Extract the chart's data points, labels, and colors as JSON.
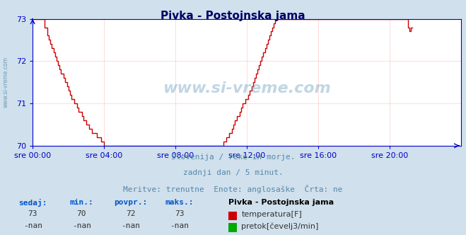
{
  "title": "Pivka - Postojnska jama",
  "bg_color": "#d0e0ec",
  "plot_bg_color": "#ffffff",
  "line_color": "#cc0000",
  "grid_color": "#ffcccc",
  "axis_color": "#0000cc",
  "text_color": "#5588aa",
  "label_color": "#0055aa",
  "footer_bold_color": "#0055cc",
  "title_color": "#000066",
  "xlim": [
    0,
    288
  ],
  "ylim": [
    70,
    73
  ],
  "yticks": [
    70,
    71,
    72,
    73
  ],
  "xtick_labels": [
    "sre 00:00",
    "sre 04:00",
    "sre 08:00",
    "sre 12:00",
    "sre 16:00",
    "sre 20:00"
  ],
  "xtick_positions": [
    0,
    48,
    96,
    144,
    192,
    240
  ],
  "subtitle_lines": [
    "Slovenija / reke in morje.",
    "zadnji dan / 5 minut.",
    "Meritve: trenutne  Enote: anglosaške  Črta: ne"
  ],
  "footer_labels": [
    "sedaj:",
    "min.:",
    "povpr.:",
    "maks.:"
  ],
  "footer_values_temp": [
    "73",
    "70",
    "72",
    "73"
  ],
  "footer_values_flow": [
    "-nan",
    "-nan",
    "-nan",
    "-nan"
  ],
  "legend_title": "Pivka - Postojnska jama",
  "legend_items": [
    {
      "label": "temperatura[F]",
      "color": "#cc0000"
    },
    {
      "label": "pretok[čevelj3/min]",
      "color": "#00aa00"
    }
  ],
  "watermark": "www.si-vreme.com",
  "temperature_data": [
    73,
    73,
    73,
    73,
    73,
    73,
    73,
    73,
    72.8,
    72.8,
    72.6,
    72.5,
    72.4,
    72.3,
    72.2,
    72.1,
    72.0,
    71.9,
    71.8,
    71.7,
    71.7,
    71.6,
    71.5,
    71.4,
    71.3,
    71.2,
    71.1,
    71.1,
    71.0,
    71.0,
    70.9,
    70.8,
    70.8,
    70.7,
    70.6,
    70.6,
    70.5,
    70.5,
    70.4,
    70.4,
    70.3,
    70.3,
    70.3,
    70.2,
    70.2,
    70.2,
    70.1,
    70.1,
    70.0,
    70.0,
    70.0,
    70.0,
    70.0,
    70.0,
    70.0,
    70.0,
    70.0,
    70.0,
    70.0,
    70.0,
    70.0,
    70.0,
    70.0,
    70.0,
    70.0,
    70.0,
    70.0,
    70.0,
    70.0,
    70.0,
    70.0,
    70.0,
    70.0,
    70.0,
    70.0,
    70.0,
    70.0,
    70.0,
    70.0,
    70.0,
    70.0,
    70.0,
    70.0,
    70.0,
    70.0,
    70.0,
    70.0,
    70.0,
    70.0,
    70.0,
    70.0,
    70.0,
    70.0,
    70.0,
    70.0,
    70.0,
    70.0,
    70.0,
    70.0,
    70.0,
    70.0,
    70.0,
    70.0,
    70.0,
    70.0,
    70.0,
    70.0,
    70.0,
    70.0,
    70.0,
    70.0,
    70.0,
    70.0,
    70.0,
    70.0,
    70.0,
    70.0,
    70.0,
    70.0,
    70.0,
    70.0,
    70.0,
    70.0,
    70.0,
    70.0,
    70.0,
    70.0,
    70.0,
    70.1,
    70.1,
    70.2,
    70.2,
    70.3,
    70.3,
    70.4,
    70.5,
    70.6,
    70.7,
    70.7,
    70.8,
    70.9,
    71.0,
    71.0,
    71.1,
    71.1,
    71.2,
    71.3,
    71.4,
    71.5,
    71.6,
    71.7,
    71.8,
    71.9,
    72.0,
    72.1,
    72.2,
    72.3,
    72.4,
    72.5,
    72.6,
    72.7,
    72.8,
    72.9,
    73.0,
    73.0,
    73.0,
    73.0,
    73.0,
    73.0,
    73.0,
    73.0,
    73.0,
    73.0,
    73.0,
    73.0,
    73.0,
    73.0,
    73.0,
    73.0,
    73.0,
    73.0,
    73.0,
    73.0,
    73.0,
    73.0,
    73.0,
    73.0,
    73.0,
    73.0,
    73.0,
    73.0,
    73.0,
    73.0,
    73.0,
    73.0,
    73.0,
    73.0,
    73.0,
    73.0,
    73.0,
    73.0,
    73.0,
    73.0,
    73.0,
    73.0,
    73.0,
    73.0,
    73.0,
    73.0,
    73.0,
    73.0,
    73.0,
    73.0,
    73.0,
    73.0,
    73.0,
    73.0,
    73.0,
    73.0,
    73.0,
    73.0,
    73.0,
    73.0,
    73.0,
    73.0,
    73.0,
    73.0,
    73.0,
    73.0,
    73.0,
    73.0,
    73.0,
    73.0,
    73.0,
    73.0,
    73.0,
    73.0,
    73.0,
    73.0,
    73.0,
    73.0,
    73.0,
    73.0,
    73.0,
    73.0,
    73.0,
    73.0,
    73.0,
    73.0,
    73.0,
    73.0,
    73.0,
    72.8,
    72.7,
    72.8,
    72.8
  ]
}
